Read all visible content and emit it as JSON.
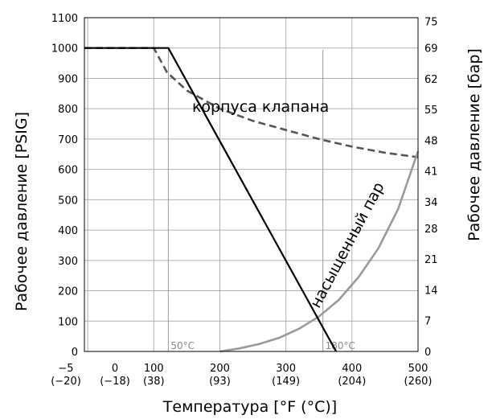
{
  "chart_data": {
    "type": "line",
    "xlabel": "Температура  [°F (°C)]",
    "ylabel_left": "Рабочее давление   [PSIG]",
    "ylabel_right": "Рабочее давление   [бар]",
    "xlim": [
      -5,
      500
    ],
    "ylim": [
      0,
      1100
    ],
    "x_ticks": [
      {
        "value": -5,
        "f": "−5",
        "c": "(−20)"
      },
      {
        "value": 0,
        "f": "0",
        "c": "(−18)"
      },
      {
        "value": 100,
        "f": "100",
        "c": "(38)"
      },
      {
        "value": 200,
        "f": "200",
        "c": "(93)"
      },
      {
        "value": 300,
        "f": "300",
        "c": "(149)"
      },
      {
        "value": 400,
        "f": "400",
        "c": "(204)"
      },
      {
        "value": 500,
        "f": "500",
        "c": "(260)"
      }
    ],
    "y_ticks_left": [
      0,
      100,
      200,
      300,
      400,
      500,
      600,
      700,
      800,
      900,
      1000,
      1100
    ],
    "y_ticks_right": [
      {
        "value": 0,
        "label": "0"
      },
      {
        "value": 101.5,
        "label": "7"
      },
      {
        "value": 203,
        "label": "14"
      },
      {
        "value": 304.6,
        "label": "21"
      },
      {
        "value": 406.1,
        "label": "28"
      },
      {
        "value": 493.1,
        "label": "34"
      },
      {
        "value": 594.7,
        "label": "41"
      },
      {
        "value": 696.2,
        "label": "48"
      },
      {
        "value": 797.7,
        "label": "55"
      },
      {
        "value": 899.2,
        "label": "62"
      },
      {
        "value": 1000.7,
        "label": "69"
      },
      {
        "value": 1087.8,
        "label": "75"
      }
    ],
    "grid": true,
    "vertical_markers": [
      {
        "x": 122,
        "label": "50°C"
      },
      {
        "x": 356,
        "label": "180°C"
      }
    ],
    "series": [
      {
        "name": "корпуса клапана",
        "style": "dashed",
        "color": "#555555",
        "x": [
          -5,
          100,
          120,
          150,
          200,
          250,
          300,
          350,
          400,
          450,
          500
        ],
        "y": [
          1000,
          1000,
          920,
          860,
          800,
          760,
          730,
          700,
          675,
          655,
          640
        ]
      },
      {
        "name": "насыщенный пар",
        "style": "solid",
        "color": "#9a9a9a",
        "x": [
          200,
          230,
          260,
          290,
          320,
          350,
          380,
          410,
          440,
          470,
          500
        ],
        "y": [
          0,
          10,
          25,
          45,
          75,
          115,
          170,
          245,
          340,
          470,
          660
        ]
      },
      {
        "style": "solid",
        "color": "#000000",
        "x": [
          -5,
          122,
          376
        ],
        "y": [
          1000,
          1000,
          0
        ]
      }
    ],
    "annotations": [
      {
        "text": "корпуса клапана",
        "x": 158,
        "y": 790
      },
      {
        "text": "насыщенный пар",
        "x": 350,
        "y": 140,
        "rotate": -62
      }
    ]
  }
}
